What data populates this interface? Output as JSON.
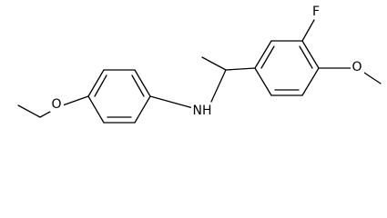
{
  "atoms": [
    {
      "label": "O"
    },
    {
      "label": "NH"
    },
    {
      "label": "F"
    },
    {
      "label": "O"
    }
  ]
}
